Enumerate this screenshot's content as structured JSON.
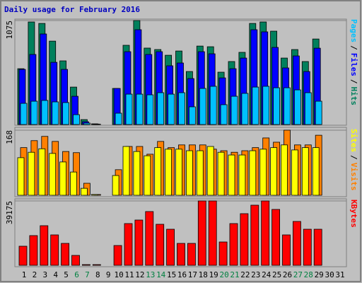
{
  "chart_data": [
    {
      "type": "bar",
      "title": "Daily usage for February 2016",
      "ylim": [
        0,
        1075
      ],
      "yticks": [
        1075
      ],
      "legend_separator": "/",
      "series": [
        {
          "name": "Hits",
          "color": "#00805c",
          "values": [
            577,
            1060,
            1045,
            862,
            658,
            387,
            51,
            7,
            0,
            373,
            819,
            1075,
            790,
            775,
            716,
            760,
            548,
            811,
            804,
            541,
            651,
            746,
            1045,
            1060,
            965,
            687,
            775,
            651,
            884,
            0,
            0
          ]
        },
        {
          "name": "Files",
          "color": "#0000ff",
          "values": [
            570,
            724,
            936,
            643,
            570,
            292,
            29,
            5,
            0,
            373,
            753,
            980,
            724,
            753,
            607,
            636,
            475,
            753,
            731,
            482,
            577,
            687,
            980,
            958,
            797,
            585,
            709,
            548,
            789,
            0,
            0
          ]
        },
        {
          "name": "Pages",
          "color": "#00c0ff",
          "values": [
            219,
            241,
            249,
            234,
            227,
            102,
            15,
            3,
            0,
            117,
            314,
            314,
            307,
            329,
            314,
            329,
            183,
            373,
            395,
            205,
            292,
            322,
            387,
            395,
            380,
            380,
            358,
            329,
            241,
            0,
            0
          ]
        }
      ]
    },
    {
      "type": "bar",
      "ylim": [
        0,
        168
      ],
      "yticks": [
        168
      ],
      "legend_separator": "/",
      "series": [
        {
          "name": "Visits",
          "color": "#ff8000",
          "values": [
            123,
            141,
            152,
            139,
            113,
            110,
            31,
            2,
            0,
            66,
            126,
            126,
            106,
            139,
            123,
            130,
            130,
            130,
            119,
            115,
            111,
            115,
            123,
            148,
            137,
            168,
            130,
            130,
            155,
            0,
            0
          ]
        },
        {
          "name": "Sites",
          "color": "#ffff00",
          "values": [
            97,
            111,
            120,
            108,
            86,
            60,
            18,
            2,
            0,
            51,
            126,
            113,
            102,
            123,
            119,
            119,
            115,
            115,
            126,
            111,
            104,
            104,
            115,
            119,
            123,
            130,
            117,
            123,
            123,
            0,
            0
          ]
        }
      ]
    },
    {
      "type": "bar",
      "ylim": [
        0,
        39175
      ],
      "yticks": [
        39175
      ],
      "categories": [
        "1",
        "2",
        "3",
        "4",
        "5",
        "6",
        "7",
        "8",
        "9",
        "10",
        "11",
        "12",
        "13",
        "14",
        "15",
        "16",
        "17",
        "18",
        "19",
        "20",
        "21",
        "22",
        "23",
        "24",
        "25",
        "26",
        "27",
        "28",
        "29",
        "30",
        "31"
      ],
      "category_colors": [
        "#000000",
        "#000000",
        "#000000",
        "#000000",
        "#000000",
        "#008040",
        "#008040",
        "#000000",
        "#000000",
        "#000000",
        "#000000",
        "#000000",
        "#008040",
        "#008040",
        "#000000",
        "#000000",
        "#000000",
        "#000000",
        "#000000",
        "#008040",
        "#008040",
        "#000000",
        "#000000",
        "#000000",
        "#000000",
        "#000000",
        "#008040",
        "#008040",
        "#000000",
        "#000000",
        "#000000"
      ],
      "series": [
        {
          "name": "KBytes",
          "color": "#ff0000",
          "values": [
            11624,
            18081,
            24108,
            18511,
            13345,
            6027,
            430,
            430,
            0,
            12054,
            25400,
            27552,
            32718,
            24969,
            21955,
            13345,
            13345,
            39175,
            39175,
            14206,
            25400,
            31426,
            36592,
            39175,
            34009,
            18511,
            26691,
            21955,
            21955,
            0,
            0
          ]
        }
      ]
    }
  ]
}
